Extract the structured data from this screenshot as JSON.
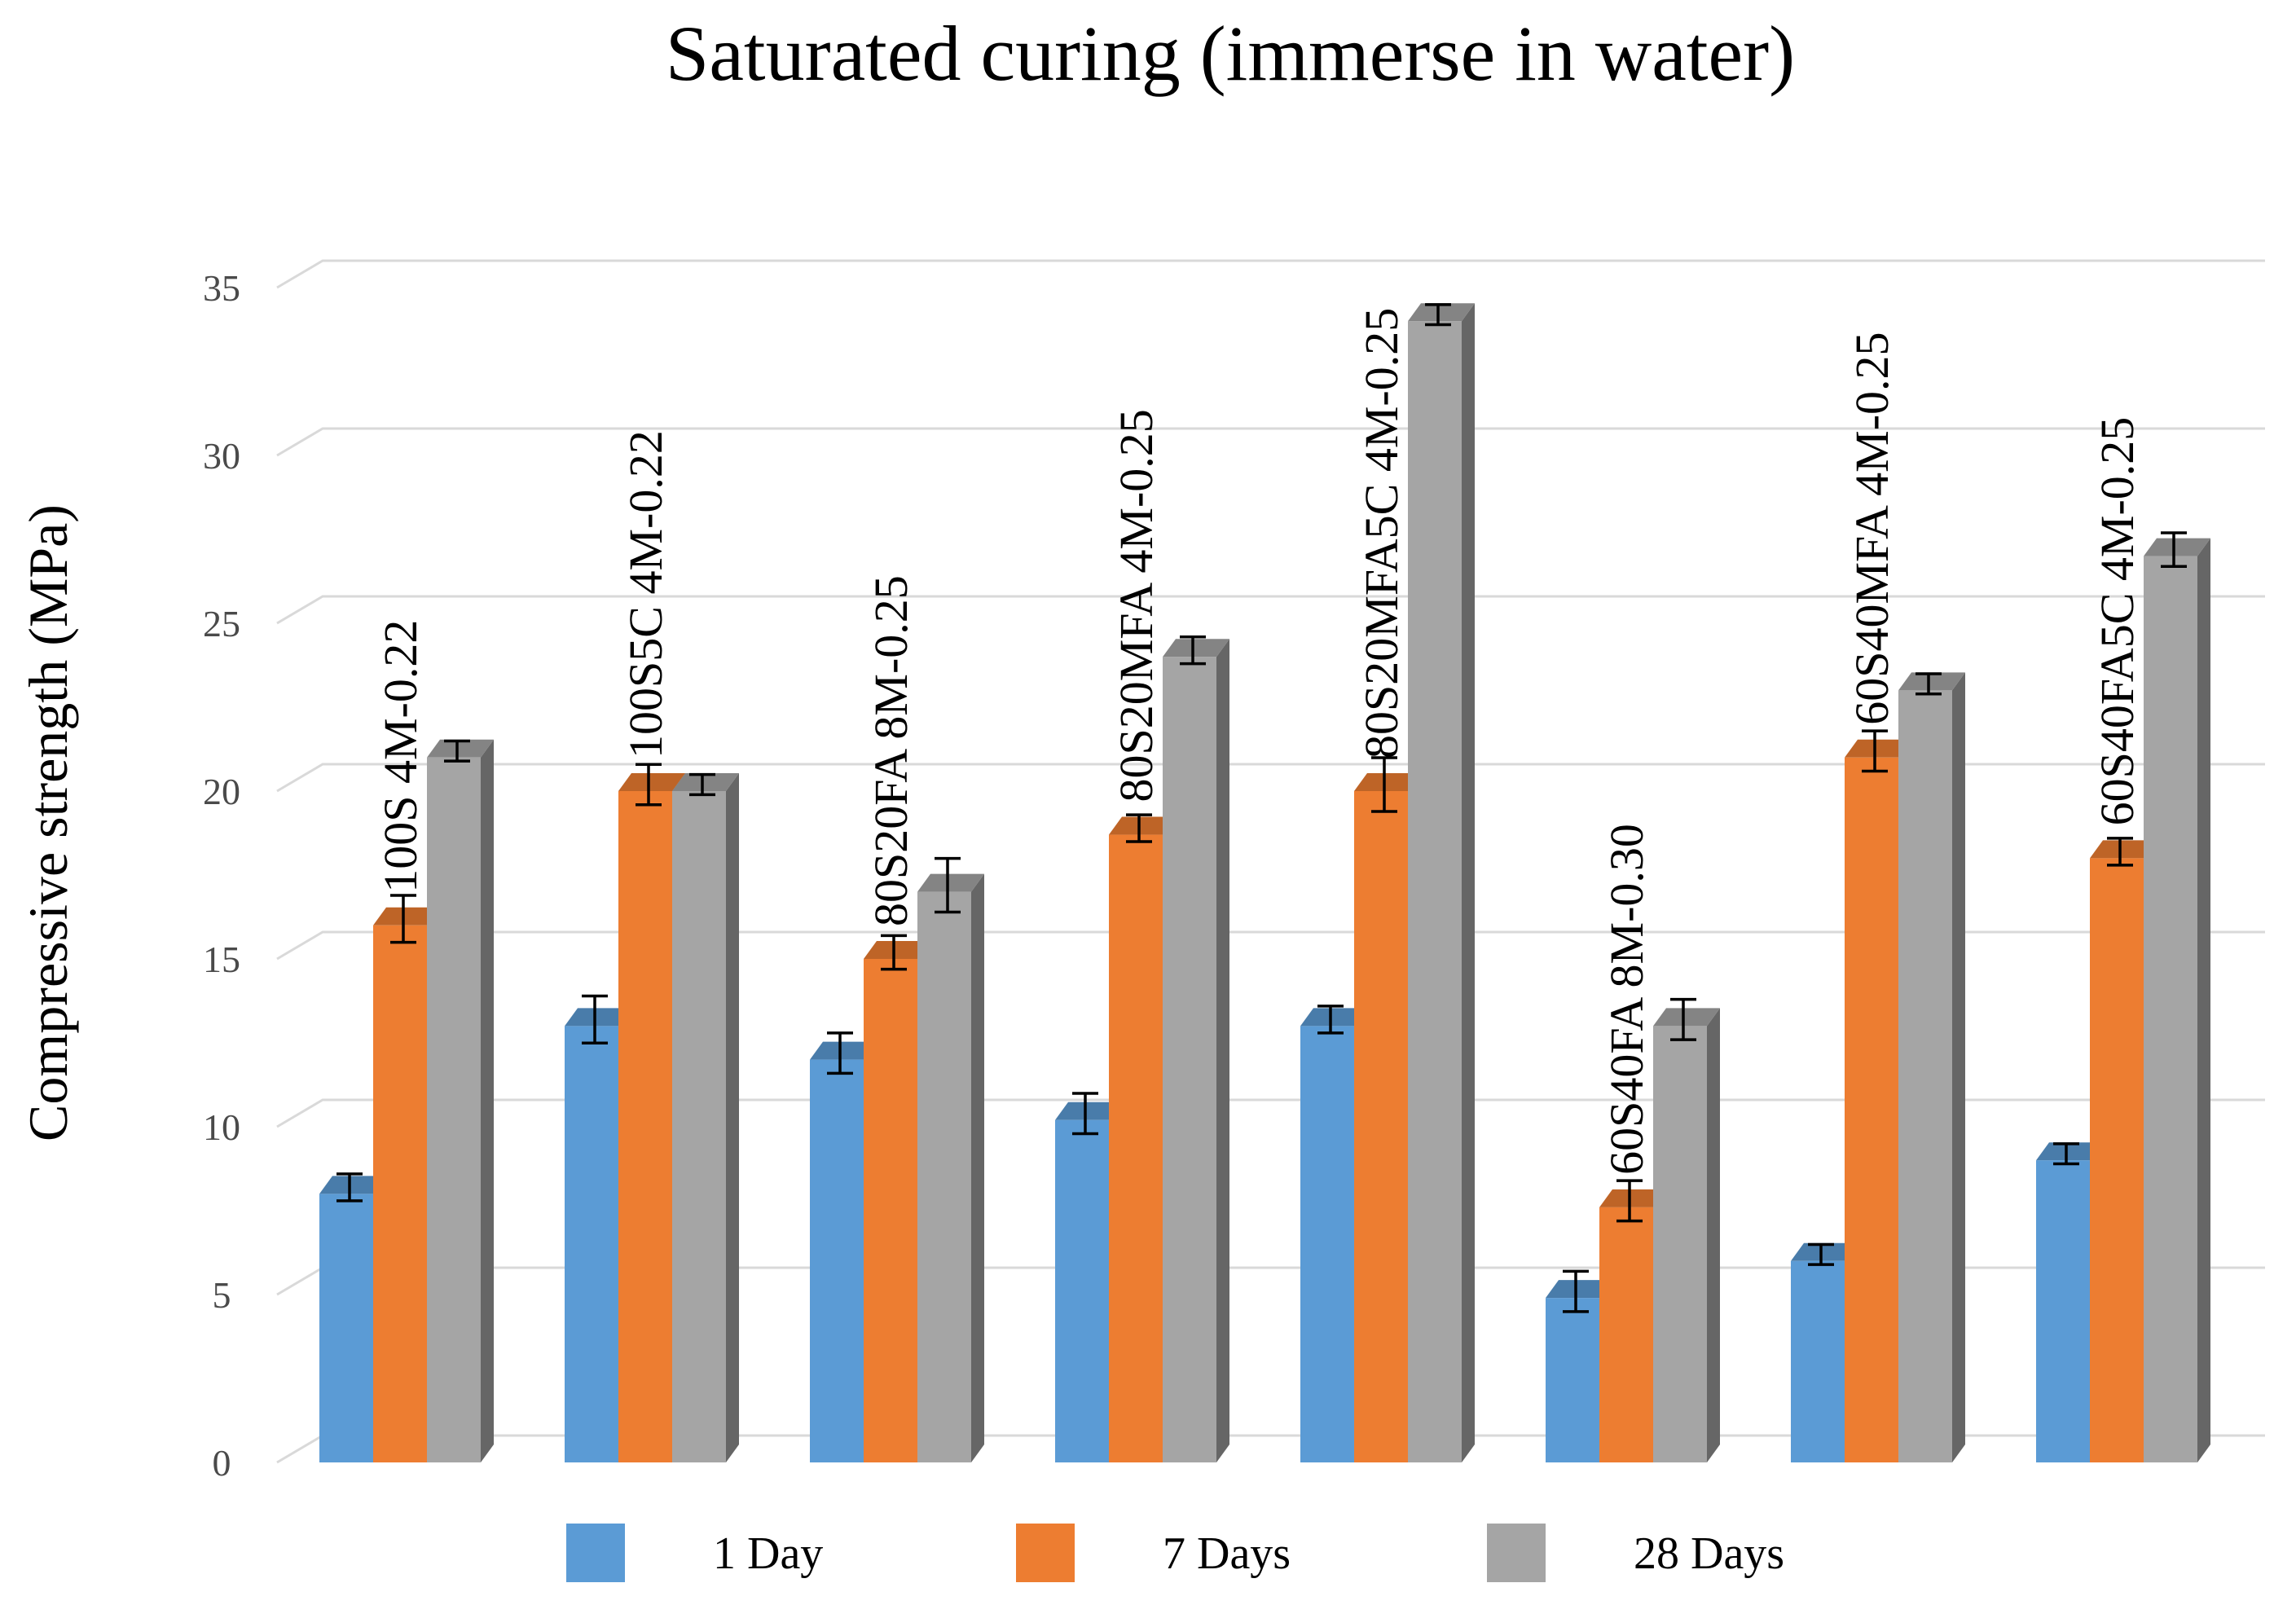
{
  "chart_data": {
    "type": "bar",
    "title": "Saturated curing (immerse in water)",
    "xlabel": "",
    "ylabel": "Compressive strength (MPa)",
    "ylim": [
      0,
      35
    ],
    "yticks": [
      0,
      5,
      10,
      15,
      20,
      25,
      30,
      35
    ],
    "grid": true,
    "legend_position": "bottom",
    "categories": [
      "100S 4M-0.22",
      "100S5C 4M-0.22",
      "80S20FA 8M-0.25",
      "80S20MFA 4M-0.25",
      "80S20MFA5C 4M-0.25",
      "60S40FA 8M-0.30",
      "60S40MFA 4M-0.25",
      "60S40FA5C 4M-0.25"
    ],
    "series": [
      {
        "name": "1 Day",
        "color": "#5b9bd5",
        "values": [
          8,
          13,
          12,
          10.2,
          13,
          4.9,
          6,
          9
        ],
        "errors": [
          0.4,
          0.7,
          0.6,
          0.6,
          0.4,
          0.6,
          0.3,
          0.3
        ]
      },
      {
        "name": "7 Days",
        "color": "#ed7d31",
        "values": [
          16,
          20,
          15,
          18.7,
          20,
          7.6,
          21,
          18
        ],
        "errors": [
          0.7,
          0.6,
          0.5,
          0.4,
          0.8,
          0.6,
          0.6,
          0.4
        ]
      },
      {
        "name": "28 Days",
        "color": "#a5a5a5",
        "values": [
          21,
          20,
          17,
          24,
          34,
          13,
          23,
          27
        ],
        "errors": [
          0.3,
          0.3,
          0.8,
          0.4,
          0.3,
          0.6,
          0.3,
          0.5
        ]
      }
    ]
  }
}
